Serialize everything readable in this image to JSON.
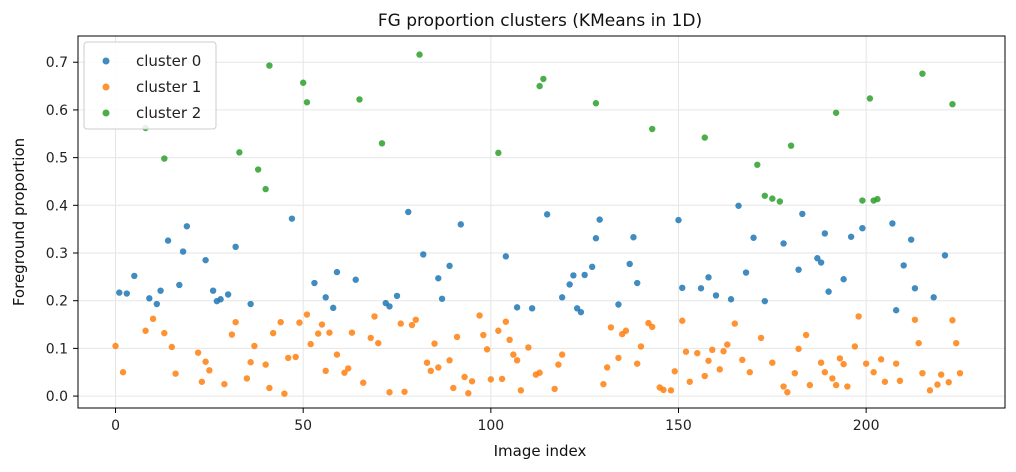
{
  "chart_data": {
    "type": "scatter",
    "title": "FG proportion clusters (KMeans in 1D)",
    "xlabel": "Image index",
    "ylabel": "Foreground proportion",
    "xlim": [
      -10,
      237
    ],
    "ylim": [
      -0.025,
      0.755
    ],
    "xticks": [
      0,
      50,
      100,
      150,
      200
    ],
    "yticks": [
      0.0,
      0.1,
      0.2,
      0.3,
      0.4,
      0.5,
      0.6,
      0.7
    ],
    "xtick_labels": [
      "0",
      "50",
      "100",
      "150",
      "200"
    ],
    "ytick_labels": [
      "0.0",
      "0.1",
      "0.2",
      "0.3",
      "0.4",
      "0.5",
      "0.6",
      "0.7"
    ],
    "grid": true,
    "legend_position": "top-left",
    "series": [
      {
        "name": "cluster 0",
        "color": "#1f77b4",
        "x": [
          1,
          3,
          5,
          9,
          11,
          12,
          14,
          17,
          18,
          19,
          24,
          26,
          27,
          28,
          30,
          32,
          36,
          47,
          53,
          56,
          58,
          59,
          64,
          72,
          73,
          75,
          78,
          82,
          86,
          87,
          89,
          92,
          104,
          107,
          111,
          115,
          119,
          121,
          122,
          123,
          124,
          125,
          127,
          128,
          129,
          134,
          137,
          138,
          139,
          150,
          151,
          156,
          158,
          160,
          164,
          166,
          168,
          170,
          173,
          178,
          182,
          183,
          187,
          188,
          189,
          190,
          194,
          196,
          199,
          207,
          208,
          210,
          212,
          213,
          218,
          221
        ],
        "y": [
          0.217,
          0.215,
          0.252,
          0.205,
          0.193,
          0.221,
          0.326,
          0.233,
          0.303,
          0.356,
          0.285,
          0.221,
          0.199,
          0.203,
          0.213,
          0.313,
          0.193,
          0.372,
          0.237,
          0.207,
          0.185,
          0.26,
          0.244,
          0.195,
          0.188,
          0.21,
          0.386,
          0.297,
          0.247,
          0.204,
          0.273,
          0.36,
          0.293,
          0.186,
          0.184,
          0.381,
          0.207,
          0.234,
          0.253,
          0.184,
          0.176,
          0.254,
          0.271,
          0.331,
          0.37,
          0.192,
          0.277,
          0.333,
          0.237,
          0.369,
          0.227,
          0.226,
          0.249,
          0.211,
          0.203,
          0.399,
          0.259,
          0.332,
          0.199,
          0.32,
          0.265,
          0.382,
          0.289,
          0.28,
          0.341,
          0.219,
          0.245,
          0.334,
          0.352,
          0.362,
          0.18,
          0.274,
          0.328,
          0.226,
          0.207,
          0.295
        ]
      },
      {
        "name": "cluster 1",
        "color": "#ff7f0e",
        "x": [
          0,
          2,
          8,
          10,
          13,
          15,
          16,
          22,
          23,
          24,
          25,
          29,
          31,
          32,
          35,
          36,
          37,
          40,
          41,
          42,
          44,
          45,
          46,
          48,
          49,
          51,
          52,
          54,
          55,
          56,
          57,
          59,
          61,
          62,
          63,
          66,
          68,
          69,
          70,
          73,
          76,
          77,
          79,
          80,
          83,
          84,
          85,
          86,
          89,
          90,
          91,
          93,
          94,
          95,
          97,
          98,
          99,
          100,
          102,
          103,
          104,
          105,
          106,
          107,
          108,
          110,
          112,
          113,
          117,
          118,
          119,
          130,
          131,
          132,
          134,
          135,
          136,
          139,
          140,
          142,
          143,
          145,
          146,
          148,
          149,
          151,
          152,
          153,
          155,
          157,
          158,
          159,
          161,
          162,
          163,
          165,
          167,
          169,
          172,
          175,
          178,
          179,
          181,
          182,
          184,
          185,
          188,
          189,
          191,
          192,
          193,
          194,
          195,
          197,
          198,
          200,
          202,
          204,
          205,
          208,
          209,
          213,
          214,
          215,
          217,
          219,
          220,
          222,
          223,
          224,
          225
        ],
        "y": [
          0.105,
          0.05,
          0.137,
          0.162,
          0.132,
          0.103,
          0.047,
          0.091,
          0.03,
          0.072,
          0.054,
          0.025,
          0.129,
          0.155,
          0.037,
          0.071,
          0.105,
          0.066,
          0.017,
          0.132,
          0.155,
          0.005,
          0.08,
          0.082,
          0.154,
          0.171,
          0.109,
          0.131,
          0.15,
          0.053,
          0.133,
          0.087,
          0.049,
          0.058,
          0.133,
          0.028,
          0.122,
          0.167,
          0.111,
          0.008,
          0.152,
          0.009,
          0.149,
          0.16,
          0.07,
          0.053,
          0.11,
          0.06,
          0.075,
          0.017,
          0.124,
          0.04,
          0.006,
          0.031,
          0.169,
          0.128,
          0.098,
          0.035,
          0.137,
          0.036,
          0.156,
          0.118,
          0.087,
          0.075,
          0.012,
          0.102,
          0.045,
          0.049,
          0.015,
          0.066,
          0.087,
          0.025,
          0.06,
          0.144,
          0.08,
          0.13,
          0.137,
          0.068,
          0.104,
          0.153,
          0.145,
          0.018,
          0.013,
          0.012,
          0.052,
          0.158,
          0.093,
          0.03,
          0.09,
          0.042,
          0.074,
          0.097,
          0.056,
          0.094,
          0.108,
          0.152,
          0.076,
          0.05,
          0.122,
          0.07,
          0.02,
          0.008,
          0.048,
          0.099,
          0.128,
          0.023,
          0.07,
          0.05,
          0.037,
          0.023,
          0.079,
          0.067,
          0.02,
          0.104,
          0.167,
          0.068,
          0.05,
          0.077,
          0.03,
          0.068,
          0.032,
          0.16,
          0.111,
          0.048,
          0.012,
          0.024,
          0.045,
          0.029,
          0.159,
          0.111,
          0.048
        ]
      },
      {
        "name": "cluster 2",
        "color": "#2ca02c",
        "x": [
          8,
          13,
          33,
          38,
          40,
          41,
          50,
          51,
          65,
          71,
          81,
          102,
          113,
          114,
          128,
          143,
          157,
          171,
          173,
          175,
          177,
          180,
          192,
          199,
          201,
          202,
          203,
          215,
          223
        ],
        "y": [
          0.562,
          0.498,
          0.511,
          0.475,
          0.434,
          0.693,
          0.657,
          0.616,
          0.622,
          0.53,
          0.716,
          0.51,
          0.65,
          0.665,
          0.614,
          0.56,
          0.542,
          0.485,
          0.42,
          0.414,
          0.408,
          0.525,
          0.594,
          0.41,
          0.624,
          0.41,
          0.413,
          0.676,
          0.612
        ]
      }
    ]
  }
}
